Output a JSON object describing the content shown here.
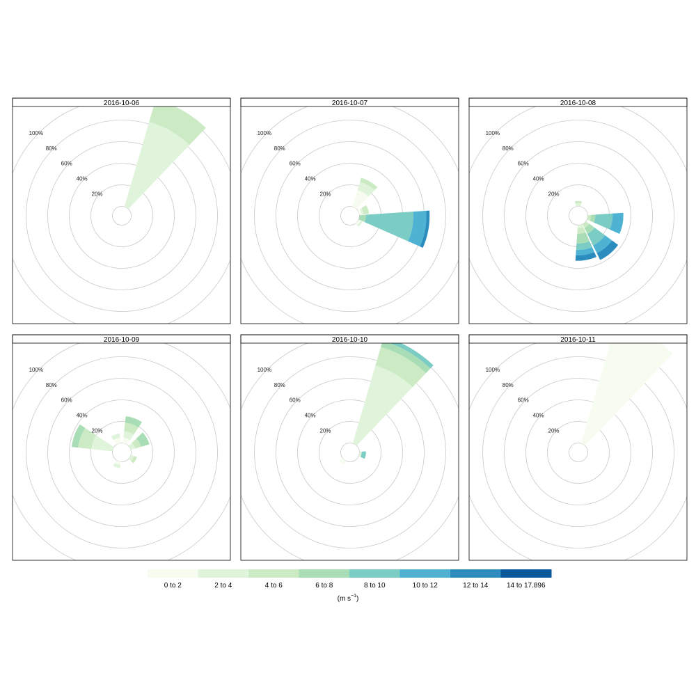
{
  "chart_data": {
    "type": "windrose",
    "panels": [
      {
        "date": "2016-10-06",
        "wedges": [
          {
            "direction": 30,
            "values": [
              0,
              82,
              22
            ]
          }
        ]
      },
      {
        "date": "2016-10-07",
        "wedges": [
          {
            "direction": 30,
            "values": [
              16,
              8,
              4
            ]
          },
          {
            "direction": 70,
            "values": [
              2,
              2,
              5
            ]
          },
          {
            "direction": 100,
            "values": [
              0,
              0,
              0,
              6,
              44,
              12,
              3
            ]
          },
          {
            "direction": 130,
            "values": [
              2,
              2
            ]
          }
        ]
      },
      {
        "date": "2016-10-08",
        "wedges": [
          {
            "direction": 0,
            "values": [
              0,
              3,
              2
            ]
          },
          {
            "direction": 100,
            "values": [
              0,
              0,
              3,
              4,
              16,
              10
            ]
          },
          {
            "direction": 140,
            "values": [
              0,
              0,
              4,
              6,
              12,
              8,
              7
            ]
          },
          {
            "direction": 170,
            "values": [
              0,
              3,
              5,
              9,
              6,
              5,
              5
            ]
          }
        ]
      },
      {
        "date": "2016-10-09",
        "wedges": [
          {
            "direction": 20,
            "values": [
              5,
              6,
              8,
              6
            ]
          },
          {
            "direction": 60,
            "values": [
              0,
              4,
              6,
              8
            ]
          },
          {
            "direction": 120,
            "values": [
              0,
              3,
              3
            ]
          },
          {
            "direction": 200,
            "values": [
              3,
              3
            ]
          },
          {
            "direction": 290,
            "values": [
              0,
              20,
              12,
              6
            ]
          },
          {
            "direction": 340,
            "values": [
              5,
              4
            ]
          }
        ]
      },
      {
        "date": "2016-10-10",
        "wedges": [
          {
            "direction": 30,
            "values": [
              0,
              75,
              18,
              6,
              4
            ]
          },
          {
            "direction": 100,
            "values": [
              0,
              2,
              0,
              0,
              4
            ]
          },
          {
            "direction": 220,
            "values": [
              4
            ]
          }
        ]
      },
      {
        "date": "2016-10-11",
        "wedges": [
          {
            "direction": 30,
            "values": [
              118
            ]
          }
        ]
      }
    ],
    "rings": [
      "20%",
      "40%",
      "60%",
      "80%",
      "100%"
    ],
    "ring_values": [
      20,
      40,
      60,
      80,
      100
    ],
    "legend": {
      "labels": [
        "0 to 2",
        "2 to 4",
        "4 to 6",
        "6 to 8",
        "8 to 10",
        "10 to 12",
        "12 to 14",
        "14 to 17.896"
      ],
      "colors": [
        "#f7fcf0",
        "#e0f3db",
        "#ccebc5",
        "#a8ddb5",
        "#7bccc4",
        "#4eb3d3",
        "#2b8cbe",
        "#08589e"
      ],
      "unit_prefix": "(m s",
      "unit_exponent": "−1",
      "unit_suffix": ")"
    },
    "colors": {
      "grid": "#c8c8c8",
      "frame": "#000000",
      "strip": "#ffffff"
    }
  }
}
